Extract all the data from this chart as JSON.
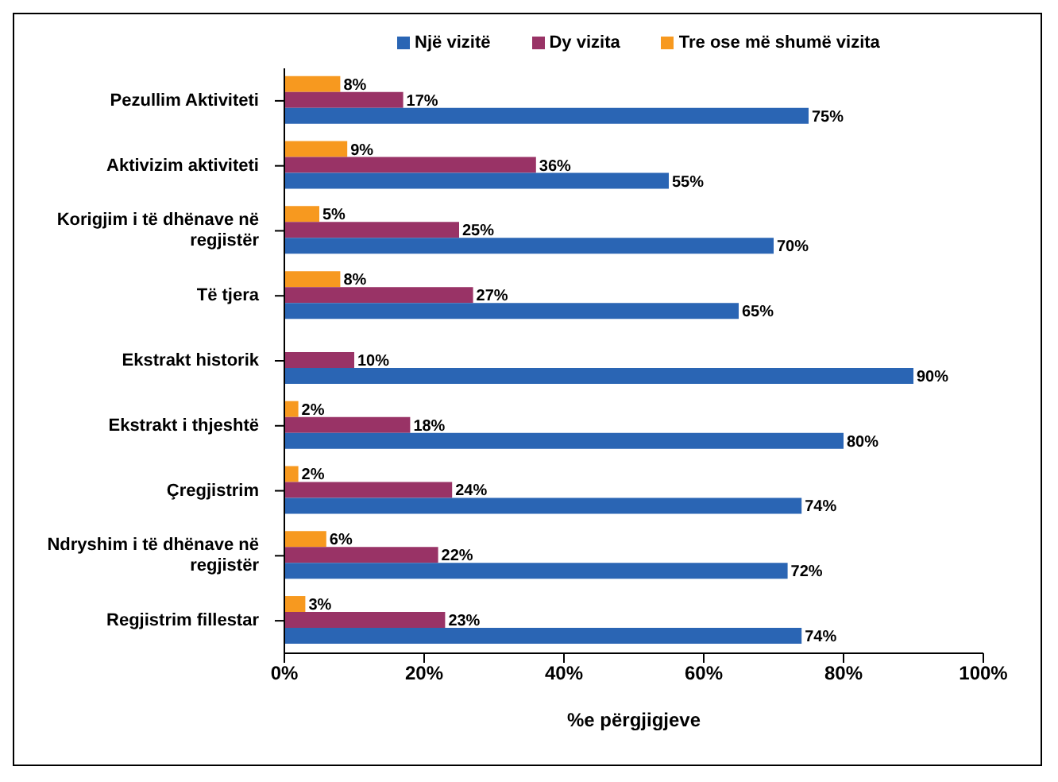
{
  "chart_data": {
    "type": "bar",
    "orientation": "horizontal",
    "xlabel": "%e përgjigjeve",
    "categories": [
      "Pezullim Aktiviteti",
      "Aktivizim aktiviteti",
      "Korigjim i të dhënave në regjistër",
      "Të tjera",
      "Ekstrakt historik",
      "Ekstrakt i thjeshtë",
      "Çregjistrim",
      "Ndryshim i të dhënave në regjistër",
      "Regjistrim fillestar"
    ],
    "series": [
      {
        "name": "Një vizitë",
        "color": "#2a65b4",
        "values": [
          75,
          55,
          70,
          65,
          90,
          80,
          74,
          72,
          74
        ],
        "value_labels": [
          "75%",
          "55%",
          "70%",
          "65%",
          "90%",
          "80%",
          "74%",
          "72%",
          "74%"
        ]
      },
      {
        "name": "Dy vizita",
        "color": "#993366",
        "values": [
          17,
          36,
          25,
          27,
          10,
          18,
          24,
          22,
          23
        ],
        "value_labels": [
          "17%",
          "36%",
          "25%",
          "27%",
          "10%",
          "18%",
          "24%",
          "22%",
          "23%"
        ]
      },
      {
        "name": "Tre ose më shumë vizita",
        "color": "#f7991f",
        "values": [
          8,
          9,
          5,
          8,
          null,
          2,
          2,
          6,
          3
        ],
        "value_labels": [
          "8%",
          "9%",
          "5%",
          "8%",
          null,
          "2%",
          "2%",
          "6%",
          "3%"
        ]
      }
    ],
    "xlim": [
      0,
      100
    ],
    "xticks": [
      {
        "value": 0,
        "label": "0%"
      },
      {
        "value": 20,
        "label": "20%"
      },
      {
        "value": 40,
        "label": "40%"
      },
      {
        "value": 60,
        "label": "60%"
      },
      {
        "value": 80,
        "label": "80%"
      },
      {
        "value": 100,
        "label": "100%"
      }
    ],
    "legend": "top",
    "grid": false
  }
}
